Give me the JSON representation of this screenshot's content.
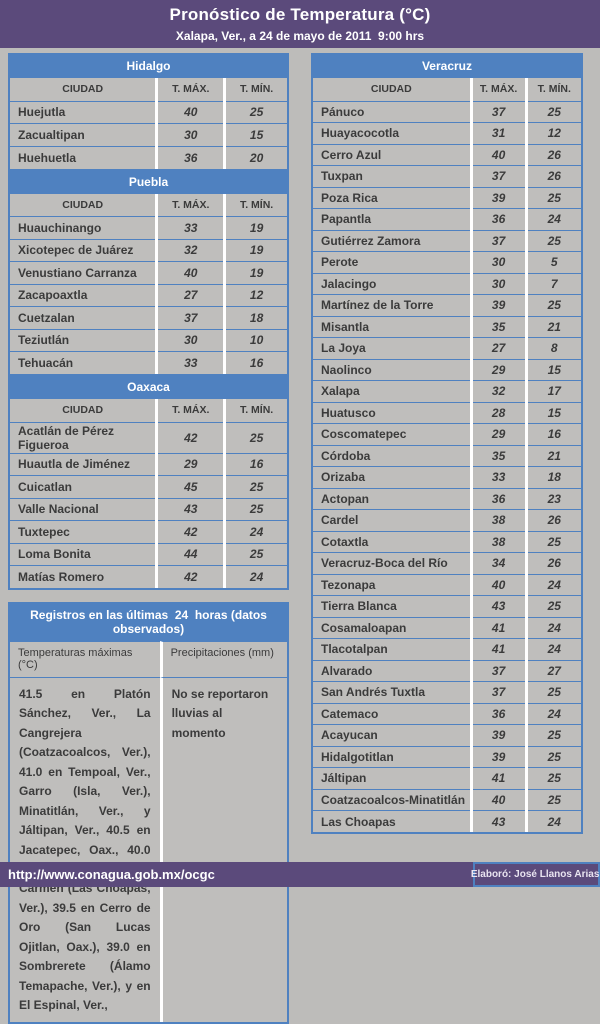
{
  "header": {
    "title": "Pronóstico de Temperatura (°C)",
    "subtitle": "Xalapa, Ver., a 24 de mayo de 2011  9:00 hrs"
  },
  "columns": {
    "city": "CIUDAD",
    "tmax": "T. MÁX.",
    "tmin": "T. MÍN."
  },
  "tables": {
    "hidalgo": {
      "title": "Hidalgo",
      "rows": [
        {
          "city": "Huejutla",
          "tmax": "40",
          "tmin": "25"
        },
        {
          "city": "Zacualtipan",
          "tmax": "30",
          "tmin": "15"
        },
        {
          "city": "Huehuetla",
          "tmax": "36",
          "tmin": "20"
        }
      ]
    },
    "puebla": {
      "title": "Puebla",
      "rows": [
        {
          "city": "Huauchinango",
          "tmax": "33",
          "tmin": "19"
        },
        {
          "city": "Xicotepec de Juárez",
          "tmax": "32",
          "tmin": "19"
        },
        {
          "city": "Venustiano Carranza",
          "tmax": "40",
          "tmin": "19"
        },
        {
          "city": "Zacapoaxtla",
          "tmax": "27",
          "tmin": "12"
        },
        {
          "city": "Cuetzalan",
          "tmax": "37",
          "tmin": "18"
        },
        {
          "city": "Teziutlán",
          "tmax": "30",
          "tmin": "10"
        },
        {
          "city": "Tehuacán",
          "tmax": "33",
          "tmin": "16"
        }
      ]
    },
    "oaxaca": {
      "title": "Oaxaca",
      "rows": [
        {
          "city": "Acatlán de Pérez Figueroa",
          "tmax": "42",
          "tmin": "25"
        },
        {
          "city": "Huautla de Jiménez",
          "tmax": "29",
          "tmin": "16"
        },
        {
          "city": "Cuicatlan",
          "tmax": "45",
          "tmin": "25"
        },
        {
          "city": "Valle Nacional",
          "tmax": "43",
          "tmin": "25"
        },
        {
          "city": "Tuxtepec",
          "tmax": "42",
          "tmin": "24"
        },
        {
          "city": "Loma Bonita",
          "tmax": "44",
          "tmin": "25"
        },
        {
          "city": "Matías Romero",
          "tmax": "42",
          "tmin": "24"
        }
      ]
    },
    "veracruz": {
      "title": "Veracruz",
      "rows": [
        {
          "city": "Pánuco",
          "tmax": "37",
          "tmin": "25"
        },
        {
          "city": "Huayacocotla",
          "tmax": "31",
          "tmin": "12"
        },
        {
          "city": "Cerro Azul",
          "tmax": "40",
          "tmin": "26"
        },
        {
          "city": "Tuxpan",
          "tmax": "37",
          "tmin": "26"
        },
        {
          "city": "Poza Rica",
          "tmax": "39",
          "tmin": "25"
        },
        {
          "city": "Papantla",
          "tmax": "36",
          "tmin": "24"
        },
        {
          "city": "Gutiérrez Zamora",
          "tmax": "37",
          "tmin": "25"
        },
        {
          "city": "Perote",
          "tmax": "30",
          "tmin": "5"
        },
        {
          "city": "Jalacingo",
          "tmax": "30",
          "tmin": "7"
        },
        {
          "city": "Martínez de la Torre",
          "tmax": "39",
          "tmin": "25"
        },
        {
          "city": "Misantla",
          "tmax": "35",
          "tmin": "21"
        },
        {
          "city": "La Joya",
          "tmax": "27",
          "tmin": "8"
        },
        {
          "city": "Naolinco",
          "tmax": "29",
          "tmin": "15"
        },
        {
          "city": "Xalapa",
          "tmax": "32",
          "tmin": "17"
        },
        {
          "city": "Huatusco",
          "tmax": "28",
          "tmin": "15"
        },
        {
          "city": "Coscomatepec",
          "tmax": "29",
          "tmin": "16"
        },
        {
          "city": "Córdoba",
          "tmax": "35",
          "tmin": "21"
        },
        {
          "city": "Orizaba",
          "tmax": "33",
          "tmin": "18"
        },
        {
          "city": "Actopan",
          "tmax": "36",
          "tmin": "23"
        },
        {
          "city": "Cardel",
          "tmax": "38",
          "tmin": "26"
        },
        {
          "city": "Cotaxtla",
          "tmax": "38",
          "tmin": "25"
        },
        {
          "city": "Veracruz-Boca del Río",
          "tmax": "34",
          "tmin": "26"
        },
        {
          "city": "Tezonapa",
          "tmax": "40",
          "tmin": "24"
        },
        {
          "city": "Tierra Blanca",
          "tmax": "43",
          "tmin": "25"
        },
        {
          "city": "Cosamaloapan",
          "tmax": "41",
          "tmin": "24"
        },
        {
          "city": "Tlacotalpan",
          "tmax": "41",
          "tmin": "24"
        },
        {
          "city": "Alvarado",
          "tmax": "37",
          "tmin": "27"
        },
        {
          "city": "San Andrés Tuxtla",
          "tmax": "37",
          "tmin": "25"
        },
        {
          "city": "Catemaco",
          "tmax": "36",
          "tmin": "24"
        },
        {
          "city": "Acayucan",
          "tmax": "39",
          "tmin": "25"
        },
        {
          "city": "Hidalgotitlan",
          "tmax": "39",
          "tmin": "25"
        },
        {
          "city": "Jáltipan",
          "tmax": "41",
          "tmin": "25"
        },
        {
          "city": "Coatzacoalcos-Minatitlán",
          "tmax": "40",
          "tmin": "25"
        },
        {
          "city": "Las Choapas",
          "tmax": "43",
          "tmin": "24"
        }
      ]
    }
  },
  "registros": {
    "title": "Registros en las últimas  24  horas (datos observados)",
    "col1_header": "Temperaturas máximas (°C)",
    "col2_header": "Precipitaciones (mm)",
    "col1_text": "41.5 en Platón Sánchez, Ver., La Cangrejera (Coatzacoalcos, Ver.), 41.0 en Tempoal, Ver., Garro (Isla, Ver.), Minatitlán, Ver., y Jáltipan, Ver., 40.5 en Jacatepec, Oax., 40.0 en San José del Carmen (Las Choapas, Ver.), 39.5 en Cerro de Oro (San Lucas Ojitlan, Oax.), 39.0 en Sombrerete (Álamo Temapache, Ver.), y en El Espinal, Ver.,",
    "col2_text": "No se reportaron lluvias al momento"
  },
  "footer": {
    "url": "http://www.conagua.gob.mx/ocgc",
    "credit": "Elaboró: José Llanos Arias."
  },
  "colors": {
    "header_purple": "#5b4a7b",
    "table_blue": "#4f81c0",
    "row_gray": "#bfbebc",
    "page_gray": "#bdbcba",
    "text_dark": "#3b3b3b",
    "white_separator": "#ffffff"
  }
}
